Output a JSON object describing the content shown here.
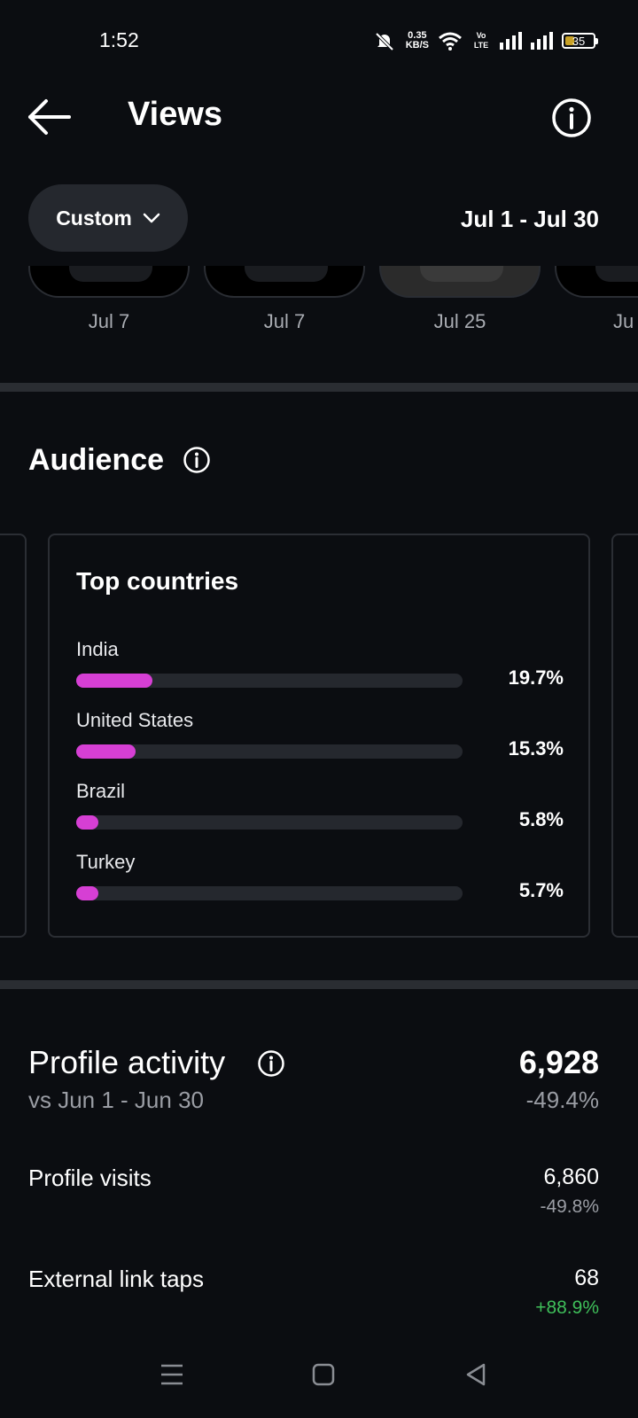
{
  "status_bar": {
    "time": "1:52",
    "net_speed_value": "0.35",
    "net_speed_unit": "KB/S",
    "volte_label": "Vo LTE",
    "battery": "35"
  },
  "header": {
    "title": "Views"
  },
  "filter": {
    "range_button": "Custom",
    "date_range": "Jul 1 - Jul 30"
  },
  "thumbnails": [
    {
      "date": "Jul 7"
    },
    {
      "date": "Jul 7"
    },
    {
      "date": "Jul 25"
    },
    {
      "date": "Ju"
    }
  ],
  "audience": {
    "title": "Audience",
    "card_title": "Top countries",
    "countries": [
      {
        "name": "India",
        "percent": "19.7%",
        "value": 19.7
      },
      {
        "name": "United States",
        "percent": "15.3%",
        "value": 15.3
      },
      {
        "name": "Brazil",
        "percent": "5.8%",
        "value": 5.8
      },
      {
        "name": "Turkey",
        "percent": "5.7%",
        "value": 5.7
      }
    ],
    "bar_color": "#d63fd4"
  },
  "profile_activity": {
    "title": "Profile activity",
    "comparison": "vs Jun 1 - Jun 30",
    "total": "6,928",
    "total_change": "-49.4%",
    "metrics": [
      {
        "label": "Profile visits",
        "value": "6,860",
        "change": "-49.8%",
        "change_color": "#9a9da4"
      },
      {
        "label": "External link taps",
        "value": "68",
        "change": "+88.9%",
        "change_color": "#3fbf5a"
      }
    ]
  },
  "colors": {
    "background": "#0b0d11",
    "card_border": "#2b2e34",
    "positive": "#3fbf5a",
    "muted": "#9a9da4"
  }
}
